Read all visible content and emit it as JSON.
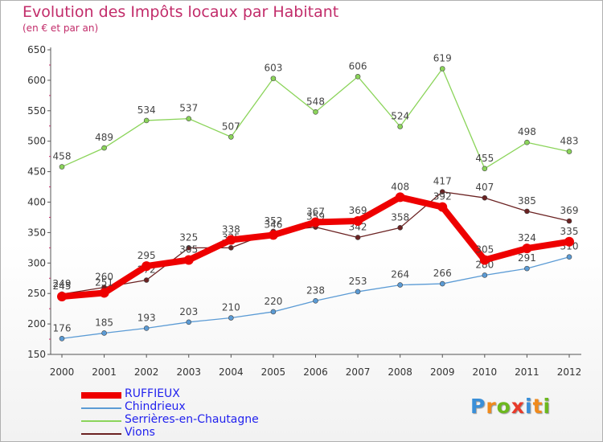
{
  "header": {
    "title": "Evolution des Impôts locaux par Habitant",
    "subtitle": "(en € et par an)"
  },
  "logo": {
    "text": "Proxiti",
    "colors": [
      "#3a8fd8",
      "#f08a1c",
      "#6cb81e",
      "#e83a2a",
      "#3a8fd8",
      "#f08a1c",
      "#6cb81e"
    ]
  },
  "chart_data": {
    "type": "line",
    "title": "Evolution des Impôts locaux par Habitant",
    "subtitle": "(en € et par an)",
    "x": [
      "2000",
      "2001",
      "2002",
      "2003",
      "2004",
      "2005",
      "2006",
      "2007",
      "2008",
      "2009",
      "2010",
      "2011",
      "2012"
    ],
    "ylim": [
      150,
      650
    ],
    "yticks": [
      150,
      200,
      250,
      300,
      350,
      400,
      450,
      500,
      550,
      600,
      650
    ],
    "grid": false,
    "legend_position": "bottom",
    "series": [
      {
        "name": "Vions",
        "color": "#6b2222",
        "values": [
          249,
          260,
          272,
          325,
          325,
          352,
          359,
          342,
          358,
          417,
          407,
          385,
          369
        ]
      },
      {
        "name": "Serrières-en-Chautagne",
        "color": "#8bd45a",
        "values": [
          458,
          489,
          534,
          537,
          507,
          603,
          548,
          606,
          524,
          619,
          455,
          498,
          483
        ]
      },
      {
        "name": "Chindrieux",
        "color": "#5b9bd5",
        "values": [
          176,
          185,
          193,
          203,
          210,
          220,
          238,
          253,
          264,
          266,
          280,
          291,
          310
        ]
      },
      {
        "name": "RUFFIEUX",
        "color": "#ee0000",
        "values": [
          245,
          251,
          295,
          305,
          338,
          346,
          367,
          369,
          408,
          392,
          305,
          324,
          335
        ]
      }
    ],
    "legend": [
      "RUFFIEUX",
      "Chindrieux",
      "Serrières-en-Chautagne",
      "Vions"
    ]
  }
}
